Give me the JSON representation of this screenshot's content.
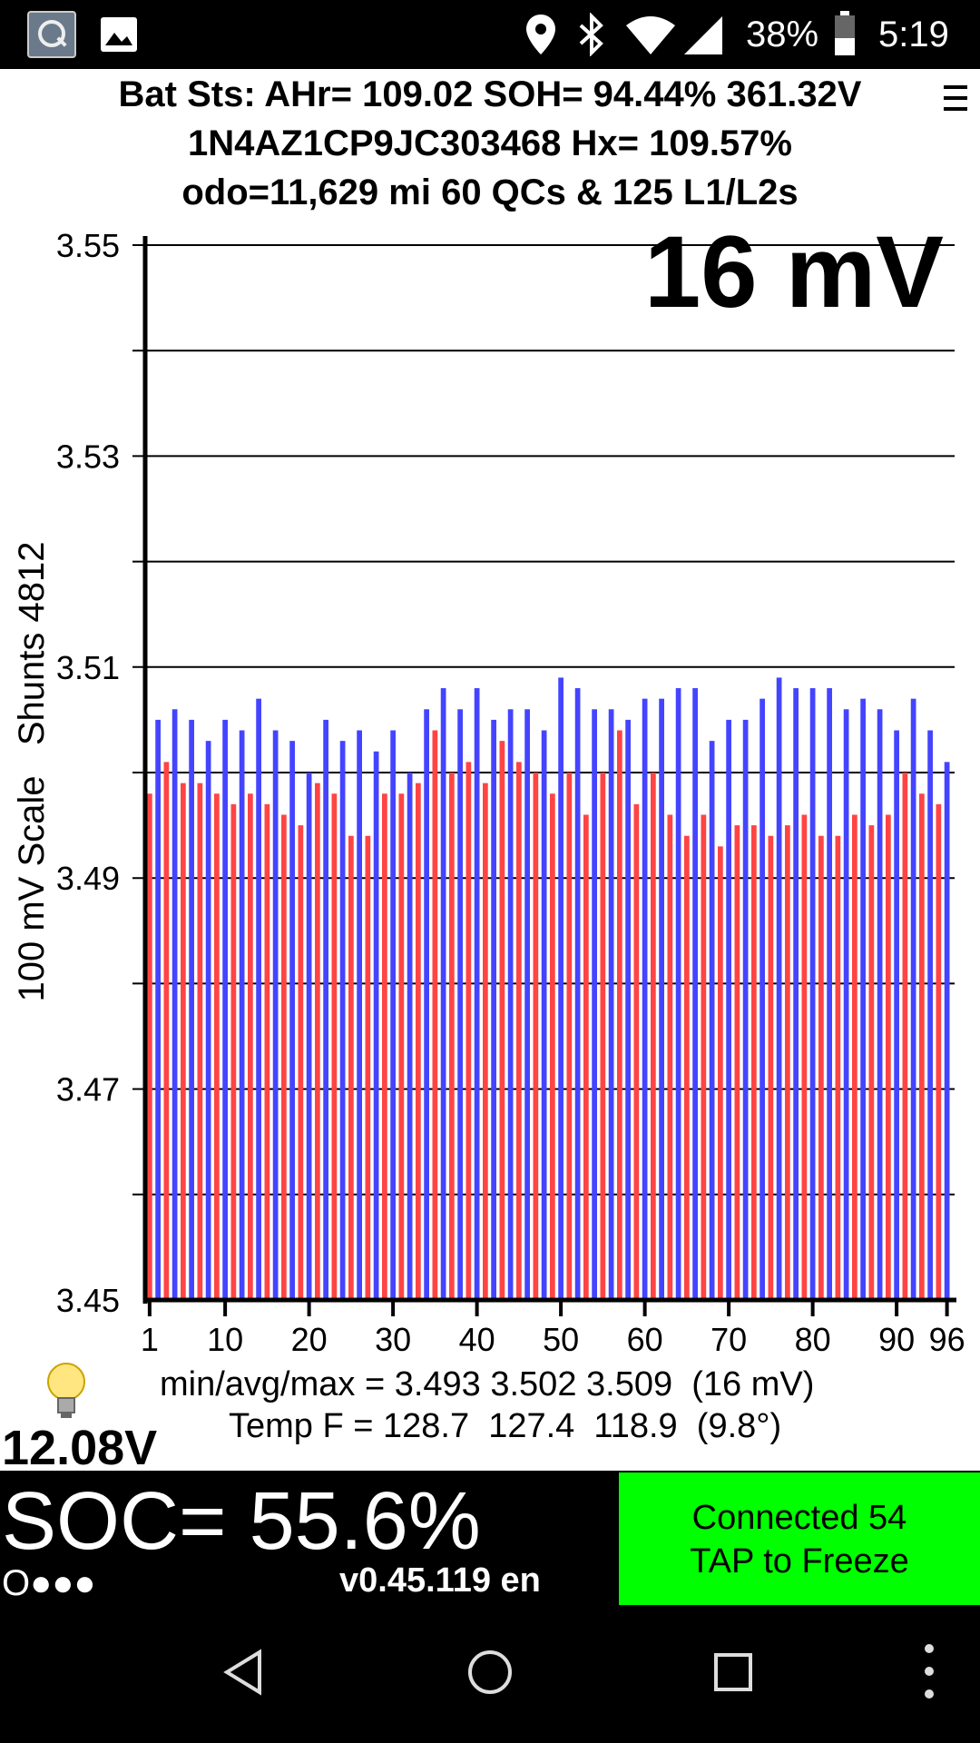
{
  "status_bar": {
    "battery_percent": "38%",
    "time": "5:19",
    "icons": [
      "app-icon",
      "image-icon",
      "location-icon",
      "bluetooth-icon",
      "wifi-icon",
      "signal-icon",
      "battery-icon"
    ]
  },
  "header": {
    "line1": "Bat Sts: AHr= 109.02 SOH= 94.44% 361.32V",
    "line2": "1N4AZ1CP9JC303468   Hx= 109.57%",
    "line3": "odo=11,629 mi 60 QCs & 125 L1/L2s"
  },
  "chart_data": {
    "type": "bar",
    "big_label": "16 mV",
    "ylabel": "100 mV Scale   Shunts 4812",
    "ylim": [
      3.45,
      3.55
    ],
    "y_tick_labels": [
      "3.55",
      "3.53",
      "3.51",
      "3.49",
      "3.47",
      "3.45"
    ],
    "y_gridlines": [
      3.55,
      3.54,
      3.53,
      3.52,
      3.51,
      3.5,
      3.49,
      3.48,
      3.47,
      3.46
    ],
    "x_tick_labels": [
      "1",
      "10",
      "20",
      "30",
      "40",
      "50",
      "60",
      "70",
      "80",
      "90",
      "96"
    ],
    "colors": {
      "odd": "#ff4444",
      "even": "#4444ff"
    },
    "cell_voltages": [
      3.498,
      3.505,
      3.501,
      3.506,
      3.499,
      3.505,
      3.499,
      3.503,
      3.498,
      3.505,
      3.497,
      3.504,
      3.498,
      3.507,
      3.497,
      3.504,
      3.496,
      3.503,
      3.495,
      3.5,
      3.499,
      3.505,
      3.498,
      3.503,
      3.494,
      3.504,
      3.494,
      3.502,
      3.498,
      3.504,
      3.498,
      3.5,
      3.499,
      3.506,
      3.504,
      3.508,
      3.5,
      3.506,
      3.501,
      3.508,
      3.499,
      3.505,
      3.503,
      3.506,
      3.501,
      3.506,
      3.5,
      3.504,
      3.498,
      3.509,
      3.5,
      3.508,
      3.496,
      3.506,
      3.5,
      3.506,
      3.504,
      3.505,
      3.497,
      3.507,
      3.5,
      3.507,
      3.496,
      3.508,
      3.494,
      3.508,
      3.496,
      3.503,
      3.493,
      3.505,
      3.495,
      3.505,
      3.495,
      3.507,
      3.494,
      3.509,
      3.495,
      3.508,
      3.496,
      3.508,
      3.494,
      3.508,
      3.494,
      3.506,
      3.496,
      3.507,
      3.495,
      3.506,
      3.496,
      3.504,
      3.5,
      3.507,
      3.498,
      3.504,
      3.497,
      3.501
    ]
  },
  "stats": {
    "minavgmax": "min/avg/max = 3.493 3.502 3.509  (16 mV)",
    "temp": "Temp F = 128.7  127.4  118.9  (9.8°)",
    "aux_voltage": "12.08V"
  },
  "bottom": {
    "soc": "SOC= 55.6%",
    "dots": "O●●●",
    "version": "v0.45.119 en",
    "connect_line1": "Connected 54",
    "connect_line2": "TAP to Freeze"
  },
  "nav": {
    "icons": [
      "back-icon",
      "home-icon",
      "recents-icon",
      "more-icon"
    ]
  }
}
